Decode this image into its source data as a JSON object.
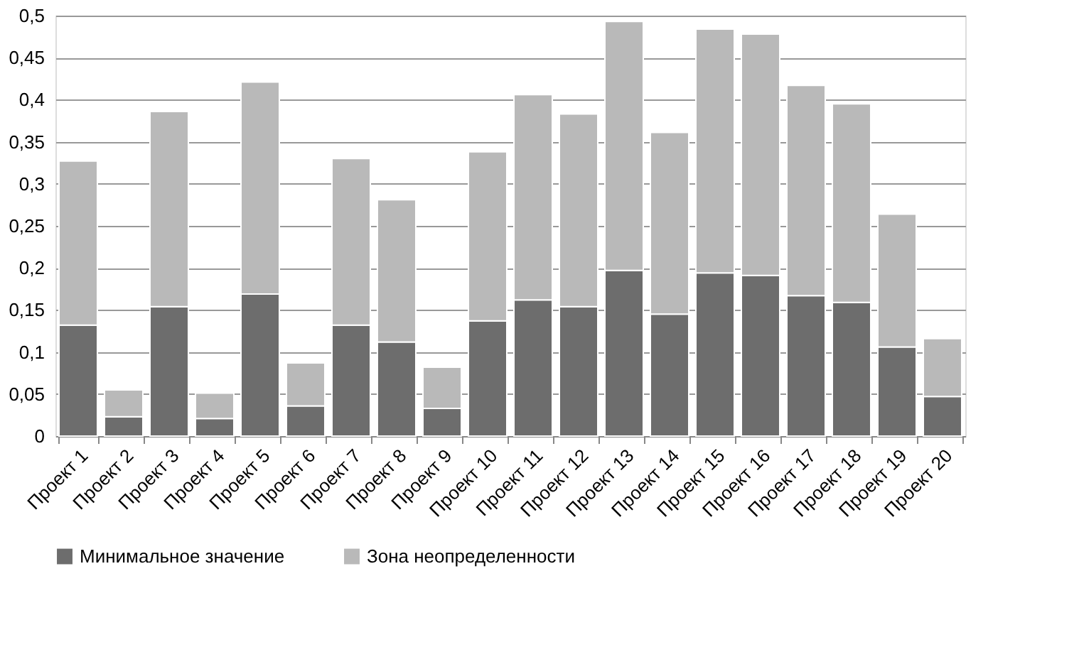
{
  "chart_data": {
    "type": "bar",
    "stacked": true,
    "categories": [
      "Проект 1",
      "Проект 2",
      "Проект 3",
      "Проект 4",
      "Проект 5",
      "Проект 6",
      "Проект 7",
      "Проект 8",
      "Проект 9",
      "Проект 10",
      "Проект 11",
      "Проект 12",
      "Проект 13",
      "Проект 14",
      "Проект 15",
      "Проект 16",
      "Проект 17",
      "Проект 18",
      "Проект 19",
      "Проект 20"
    ],
    "series": [
      {
        "name": "Минимальное значение",
        "color": "#6d6d6d",
        "values": [
          0.132,
          0.023,
          0.154,
          0.021,
          0.169,
          0.036,
          0.132,
          0.112,
          0.033,
          0.137,
          0.162,
          0.154,
          0.197,
          0.145,
          0.194,
          0.191,
          0.167,
          0.159,
          0.106,
          0.047
        ]
      },
      {
        "name": "Зона неопределенности",
        "color": "#b9b9b9",
        "values": [
          0.195,
          0.032,
          0.232,
          0.03,
          0.252,
          0.051,
          0.198,
          0.169,
          0.049,
          0.201,
          0.244,
          0.229,
          0.296,
          0.216,
          0.29,
          0.287,
          0.25,
          0.236,
          0.158,
          0.069
        ]
      }
    ],
    "ylim": [
      0,
      0.5
    ],
    "yticks": [
      {
        "value": 0,
        "label": "0"
      },
      {
        "value": 0.05,
        "label": "0,05"
      },
      {
        "value": 0.1,
        "label": "0,1"
      },
      {
        "value": 0.15,
        "label": "0,15"
      },
      {
        "value": 0.2,
        "label": "0,2"
      },
      {
        "value": 0.25,
        "label": "0,25"
      },
      {
        "value": 0.3,
        "label": "0,3"
      },
      {
        "value": 0.35,
        "label": "0,35"
      },
      {
        "value": 0.4,
        "label": "0,4"
      },
      {
        "value": 0.45,
        "label": "0,45"
      },
      {
        "value": 0.5,
        "label": "0,5"
      }
    ],
    "grid": "y",
    "legend": "bottom"
  }
}
